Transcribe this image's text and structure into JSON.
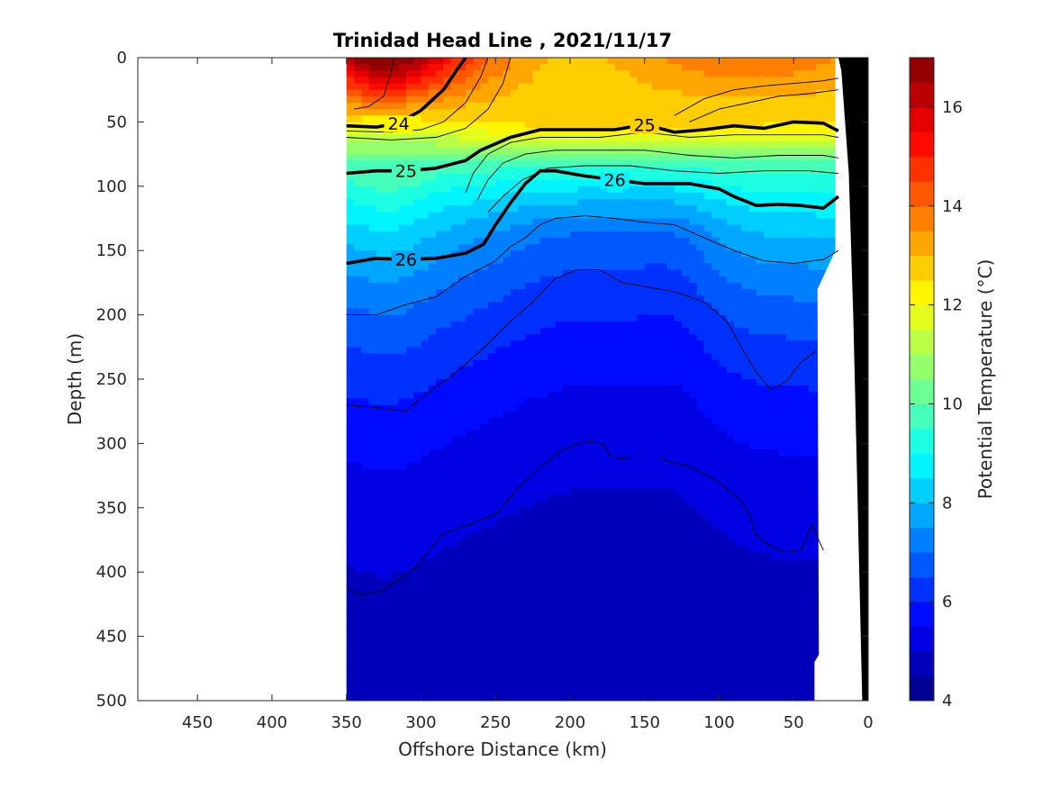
{
  "chart_data": {
    "type": "heatmap",
    "subtype": "filled-contour depth section with density contour overlay",
    "title": "Trinidad Head Line , 2021/11/17",
    "xlabel": "Offshore Distance (km)",
    "ylabel": "Depth (m)",
    "xlim": [
      490,
      0
    ],
    "ylim": [
      500,
      0
    ],
    "x_reversed": true,
    "y_reversed": true,
    "x_ticks": [
      450,
      400,
      350,
      300,
      250,
      200,
      150,
      100,
      50,
      0
    ],
    "y_ticks": [
      0,
      50,
      100,
      150,
      200,
      250,
      300,
      350,
      400,
      450,
      500
    ],
    "grid": false,
    "colorbar": {
      "label": "Potential Temperature (°C)",
      "range": [
        4,
        17
      ],
      "ticks": [
        4,
        6,
        8,
        10,
        12,
        14,
        16
      ],
      "levels": 26,
      "colormap": "jet"
    },
    "section_x_range_km": [
      350,
      20
    ],
    "density_contours": [
      {
        "label": "24",
        "emphasis": true,
        "points": [
          [
            350,
            53
          ],
          [
            330,
            54
          ],
          [
            315,
            51
          ],
          [
            300,
            41
          ],
          [
            285,
            25
          ],
          [
            275,
            8
          ],
          [
            270,
            0
          ]
        ]
      },
      {
        "label": "25",
        "emphasis": true,
        "points": [
          [
            350,
            90
          ],
          [
            330,
            88
          ],
          [
            310,
            88
          ],
          [
            290,
            86
          ],
          [
            270,
            80
          ],
          [
            260,
            72
          ],
          [
            240,
            62
          ],
          [
            220,
            56
          ],
          [
            200,
            56
          ],
          [
            170,
            56
          ],
          [
            150,
            52
          ],
          [
            130,
            58
          ],
          [
            110,
            56
          ],
          [
            90,
            53
          ],
          [
            70,
            55
          ],
          [
            50,
            50
          ],
          [
            30,
            51
          ],
          [
            20,
            57
          ]
        ]
      },
      {
        "label": "26",
        "emphasis": true,
        "points": [
          [
            350,
            160
          ],
          [
            330,
            156
          ],
          [
            310,
            157
          ],
          [
            290,
            156
          ],
          [
            270,
            152
          ],
          [
            258,
            145
          ],
          [
            250,
            130
          ],
          [
            240,
            113
          ],
          [
            230,
            98
          ],
          [
            220,
            88
          ],
          [
            210,
            88
          ],
          [
            190,
            92
          ],
          [
            170,
            95
          ],
          [
            150,
            98
          ],
          [
            120,
            98
          ],
          [
            100,
            102
          ],
          [
            90,
            108
          ],
          [
            75,
            115
          ],
          [
            60,
            114
          ],
          [
            45,
            115
          ],
          [
            30,
            117
          ],
          [
            20,
            108
          ]
        ]
      },
      {
        "label": "",
        "emphasis": false,
        "points": [
          [
            350,
            200
          ],
          [
            330,
            200
          ],
          [
            310,
            192
          ],
          [
            290,
            186
          ],
          [
            270,
            170
          ],
          [
            250,
            158
          ],
          [
            240,
            147
          ],
          [
            230,
            140
          ],
          [
            220,
            130
          ],
          [
            210,
            125
          ],
          [
            190,
            123
          ],
          [
            170,
            125
          ],
          [
            150,
            128
          ],
          [
            130,
            130
          ],
          [
            110,
            140
          ],
          [
            90,
            150
          ],
          [
            70,
            158
          ],
          [
            50,
            160
          ],
          [
            30,
            157
          ],
          [
            20,
            150
          ]
        ]
      },
      {
        "label": "",
        "emphasis": false,
        "points": [
          [
            350,
            270
          ],
          [
            330,
            272
          ],
          [
            310,
            275
          ],
          [
            295,
            260
          ],
          [
            280,
            248
          ],
          [
            260,
            228
          ],
          [
            240,
            205
          ],
          [
            225,
            190
          ],
          [
            210,
            172
          ],
          [
            195,
            165
          ],
          [
            180,
            165
          ],
          [
            165,
            175
          ],
          [
            150,
            178
          ],
          [
            130,
            182
          ],
          [
            110,
            190
          ],
          [
            95,
            205
          ],
          [
            85,
            225
          ],
          [
            75,
            245
          ],
          [
            65,
            258
          ],
          [
            55,
            252
          ],
          [
            45,
            237
          ],
          [
            35,
            228
          ]
        ]
      },
      {
        "label": "",
        "emphasis": false,
        "points": [
          [
            350,
            412
          ],
          [
            340,
            418
          ],
          [
            325,
            414
          ],
          [
            305,
            398
          ],
          [
            285,
            370
          ],
          [
            265,
            362
          ],
          [
            250,
            355
          ],
          [
            235,
            335
          ],
          [
            220,
            318
          ],
          [
            205,
            305
          ],
          [
            190,
            298
          ],
          [
            178,
            300
          ],
          [
            173,
            310
          ],
          [
            160,
            312
          ],
          [
            140,
            312
          ],
          [
            120,
            318
          ],
          [
            100,
            330
          ],
          [
            85,
            345
          ],
          [
            78,
            360
          ],
          [
            76,
            370
          ],
          [
            66,
            380
          ],
          [
            55,
            385
          ],
          [
            45,
            383
          ],
          [
            38,
            363
          ],
          [
            30,
            383
          ]
        ]
      }
    ],
    "thin_contours_shallow": [
      [
        [
          350,
          57
        ],
        [
          320,
          58
        ],
        [
          300,
          56
        ],
        [
          285,
          50
        ],
        [
          270,
          35
        ],
        [
          260,
          15
        ],
        [
          255,
          0
        ]
      ],
      [
        [
          350,
          62
        ],
        [
          320,
          64
        ],
        [
          290,
          62
        ],
        [
          270,
          55
        ],
        [
          255,
          40
        ],
        [
          245,
          20
        ],
        [
          240,
          0
        ]
      ],
      [
        [
          270,
          105
        ],
        [
          265,
          90
        ],
        [
          255,
          75
        ],
        [
          240,
          66
        ],
        [
          220,
          62
        ],
        [
          180,
          62
        ],
        [
          150,
          58
        ],
        [
          120,
          62
        ],
        [
          90,
          60
        ],
        [
          60,
          60
        ],
        [
          30,
          60
        ],
        [
          20,
          62
        ]
      ],
      [
        [
          262,
          110
        ],
        [
          255,
          95
        ],
        [
          245,
          82
        ],
        [
          230,
          75
        ],
        [
          210,
          72
        ],
        [
          180,
          72
        ],
        [
          150,
          72
        ],
        [
          120,
          76
        ],
        [
          90,
          78
        ],
        [
          60,
          76
        ],
        [
          30,
          76
        ],
        [
          20,
          78
        ]
      ],
      [
        [
          255,
          120
        ],
        [
          245,
          108
        ],
        [
          232,
          95
        ],
        [
          215,
          86
        ],
        [
          190,
          84
        ],
        [
          160,
          84
        ],
        [
          130,
          88
        ],
        [
          100,
          90
        ],
        [
          70,
          88
        ],
        [
          40,
          88
        ],
        [
          20,
          90
        ]
      ],
      [
        [
          345,
          40
        ],
        [
          335,
          38
        ],
        [
          325,
          30
        ],
        [
          320,
          10
        ],
        [
          318,
          0
        ]
      ],
      [
        [
          120,
          50
        ],
        [
          100,
          40
        ],
        [
          80,
          35
        ],
        [
          60,
          30
        ],
        [
          40,
          28
        ],
        [
          20,
          25
        ]
      ],
      [
        [
          130,
          45
        ],
        [
          110,
          32
        ],
        [
          90,
          25
        ],
        [
          70,
          22
        ],
        [
          50,
          20
        ],
        [
          30,
          18
        ],
        [
          20,
          16
        ]
      ]
    ],
    "bathymetry_km_at_depth": [
      [
        20,
        0
      ],
      [
        18,
        10
      ],
      [
        13,
        90
      ],
      [
        10,
        200
      ],
      [
        8,
        300
      ],
      [
        6,
        400
      ],
      [
        4,
        500
      ]
    ]
  }
}
